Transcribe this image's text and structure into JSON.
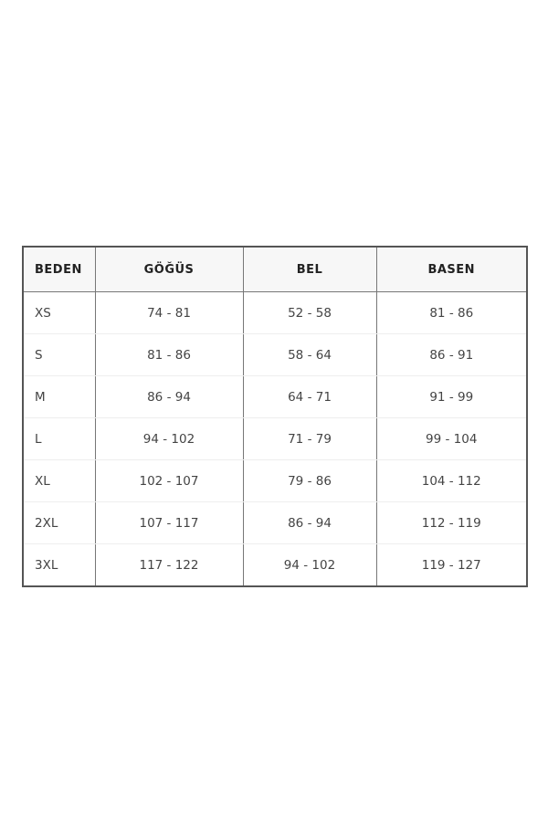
{
  "table": {
    "headers": [
      "BEDEN",
      "GÖĞÜS",
      "BEL",
      "BASEN"
    ],
    "rows": [
      [
        "XS",
        "74 - 81",
        "52 - 58",
        "81 - 86"
      ],
      [
        "S",
        "81 - 86",
        "58 - 64",
        "86 - 91"
      ],
      [
        "M",
        "86 - 94",
        "64 - 71",
        "91 - 99"
      ],
      [
        "L",
        "94 - 102",
        "71 - 79",
        "99 - 104"
      ],
      [
        "XL",
        "102 - 107",
        "79 - 86",
        "104 - 112"
      ],
      [
        "2XL",
        "107 - 117",
        "86 - 94",
        "112 - 119"
      ],
      [
        "3XL",
        "117 - 122",
        "94 - 102",
        "119 - 127"
      ]
    ]
  }
}
